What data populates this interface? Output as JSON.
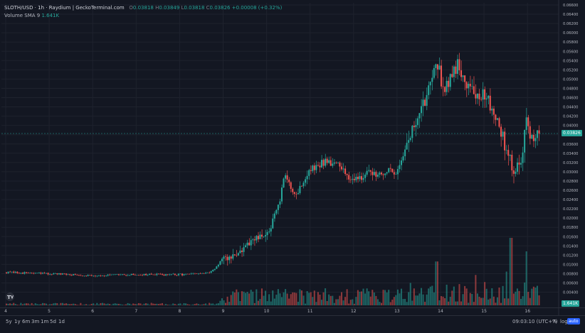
{
  "legend": {
    "symbol": "SLOTH/USD · 1h · Raydium | GeckoTerminal.com",
    "o_key": "O",
    "o_val": "0.03818",
    "h_key": "H",
    "h_val": "0.03849",
    "l_key": "L",
    "l_val": "0.03818",
    "c_key": "C",
    "c_val": "0.03826",
    "change": "+0.00008 (+0.32%)",
    "volume_label": "Volume SMA 9",
    "volume_value": "1.641K"
  },
  "price_axis": {
    "ticks": [
      "0.06600",
      "0.06400",
      "0.06200",
      "0.06000",
      "0.05800",
      "0.05600",
      "0.05400",
      "0.05200",
      "0.05000",
      "0.04800",
      "0.04600",
      "0.04400",
      "0.04200",
      "0.04000",
      "0.03800",
      "0.03600",
      "0.03400",
      "0.03200",
      "0.03000",
      "0.02800",
      "0.02600",
      "0.02400",
      "0.02200",
      "0.02000",
      "0.01800",
      "0.01600",
      "0.01400",
      "0.01200",
      "0.01000",
      "0.00800",
      "0.00600",
      "0.00400"
    ],
    "last_price": "0.03826",
    "volume_tag": "1.641K"
  },
  "time_axis": {
    "labels": [
      "4",
      "5",
      "6",
      "7",
      "8",
      "9",
      "10",
      "11",
      "12",
      "13",
      "14",
      "15",
      "16"
    ]
  },
  "bottom_bar": {
    "timeframes": [
      "5y",
      "1y",
      "6m",
      "3m",
      "1m",
      "5d",
      "1d"
    ],
    "clock": "09:03:10 (UTC+7)",
    "percent": "%",
    "log": "log",
    "auto": "auto"
  },
  "colors": {
    "up": "#26a69a",
    "down": "#ef5350",
    "background": "#131722",
    "grid": "#1e222d",
    "text": "#b2b5be"
  },
  "chart_data": {
    "type": "candlestick",
    "title": "SLOTH/USD · 1h · Raydium",
    "x_labels": [
      "4",
      "5",
      "6",
      "7",
      "8",
      "9",
      "10",
      "11",
      "12",
      "13",
      "14",
      "15",
      "16"
    ],
    "ylim": [
      0.004,
      0.066
    ],
    "last": 0.03826,
    "price_path": [
      {
        "day": 4.0,
        "price": 0.0083
      },
      {
        "day": 5.0,
        "price": 0.008
      },
      {
        "day": 6.0,
        "price": 0.0076
      },
      {
        "day": 7.0,
        "price": 0.0078
      },
      {
        "day": 8.0,
        "price": 0.0078
      },
      {
        "day": 8.7,
        "price": 0.0081
      },
      {
        "day": 9.0,
        "price": 0.0106
      },
      {
        "day": 9.4,
        "price": 0.0126
      },
      {
        "day": 9.8,
        "price": 0.0156
      },
      {
        "day": 10.0,
        "price": 0.0158
      },
      {
        "day": 10.3,
        "price": 0.0225
      },
      {
        "day": 10.45,
        "price": 0.0292
      },
      {
        "day": 10.7,
        "price": 0.025
      },
      {
        "day": 11.0,
        "price": 0.03
      },
      {
        "day": 11.4,
        "price": 0.0325
      },
      {
        "day": 11.6,
        "price": 0.0318
      },
      {
        "day": 12.0,
        "price": 0.0285
      },
      {
        "day": 12.5,
        "price": 0.0298
      },
      {
        "day": 13.0,
        "price": 0.03
      },
      {
        "day": 13.3,
        "price": 0.037
      },
      {
        "day": 13.7,
        "price": 0.046
      },
      {
        "day": 13.9,
        "price": 0.0548
      },
      {
        "day": 14.1,
        "price": 0.048
      },
      {
        "day": 14.4,
        "price": 0.053
      },
      {
        "day": 14.8,
        "price": 0.047
      },
      {
        "day": 15.1,
        "price": 0.046
      },
      {
        "day": 15.3,
        "price": 0.042
      },
      {
        "day": 15.6,
        "price": 0.033
      },
      {
        "day": 15.75,
        "price": 0.03
      },
      {
        "day": 15.9,
        "price": 0.034
      },
      {
        "day": 16.0,
        "price": 0.042
      },
      {
        "day": 16.15,
        "price": 0.036
      },
      {
        "day": 16.3,
        "price": 0.0383
      }
    ],
    "volume_spikes": [
      {
        "day": 13.9,
        "height": 0.65
      },
      {
        "day": 15.6,
        "height": 1.0
      },
      {
        "day": 15.95,
        "height": 0.8
      },
      {
        "day": 15.5,
        "height": 0.5
      },
      {
        "day": 14.8,
        "height": 0.45
      }
    ]
  }
}
